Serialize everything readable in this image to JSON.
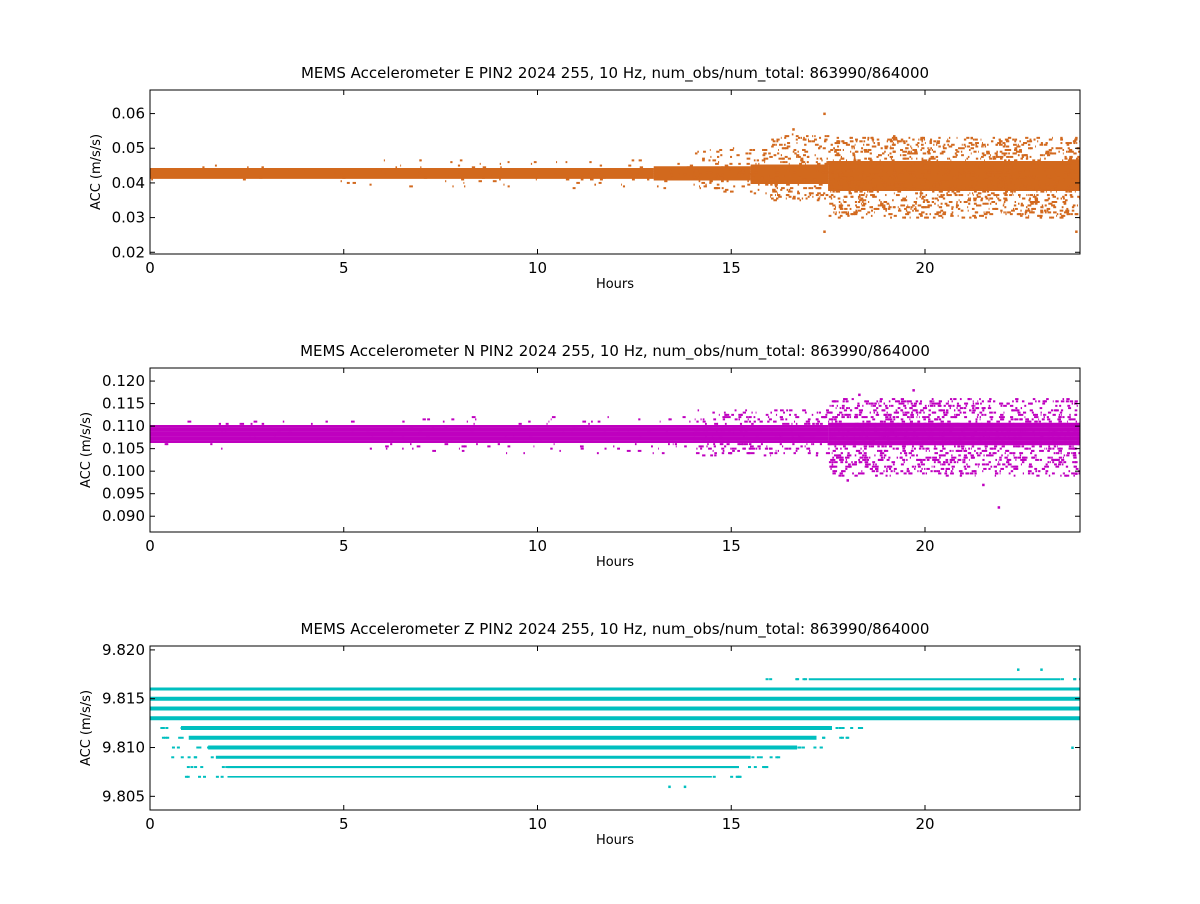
{
  "chart_data": [
    {
      "type": "scatter",
      "title": "MEMS Accelerometer E PIN2 2024 255, 10 Hz, num_obs/num_total: 863990/864000",
      "xlabel": "Hours",
      "ylabel": "ACC (m/s/s)",
      "color": "#d2691e",
      "xlim": [
        0,
        24
      ],
      "ylim": [
        0.0195,
        0.0668
      ],
      "xticks": [
        0,
        5,
        10,
        15,
        20
      ],
      "yticks": [
        0.02,
        0.03,
        0.04,
        0.05,
        0.06
      ],
      "ytick_labels": [
        "0.02",
        "0.03",
        "0.04",
        "0.05",
        "0.06"
      ],
      "grid": false,
      "band_quantum": 0.0005,
      "band_segments": [
        {
          "x0": 0.0,
          "x1": 13.0,
          "y0": 0.0415,
          "y1": 0.044
        },
        {
          "x0": 13.0,
          "x1": 15.5,
          "y0": 0.041,
          "y1": 0.0445
        },
        {
          "x0": 15.5,
          "x1": 17.5,
          "y0": 0.04,
          "y1": 0.045
        },
        {
          "x0": 17.5,
          "x1": 24.0,
          "y0": 0.038,
          "y1": 0.046
        }
      ],
      "outlier_envelope": [
        {
          "x0": 0.0,
          "x1": 6.0,
          "y0": 0.0395,
          "y1": 0.0455,
          "density": 0.4
        },
        {
          "x0": 6.0,
          "x1": 14.0,
          "y0": 0.0385,
          "y1": 0.0465,
          "density": 1.2
        },
        {
          "x0": 14.0,
          "x1": 16.0,
          "y0": 0.037,
          "y1": 0.05,
          "density": 6
        },
        {
          "x0": 16.0,
          "x1": 17.5,
          "y0": 0.035,
          "y1": 0.054,
          "density": 14
        },
        {
          "x0": 17.5,
          "x1": 24.0,
          "y0": 0.03,
          "y1": 0.053,
          "density": 22
        }
      ],
      "extreme_points": [
        {
          "x": 17.4,
          "y": 0.06
        },
        {
          "x": 17.4,
          "y": 0.026
        },
        {
          "x": 16.6,
          "y": 0.0555
        },
        {
          "x": 23.9,
          "y": 0.026
        },
        {
          "x": 19.2,
          "y": 0.0535
        },
        {
          "x": 21.2,
          "y": 0.053
        },
        {
          "x": 23.9,
          "y": 0.053
        }
      ]
    },
    {
      "type": "scatter",
      "title": "MEMS Accelerometer N PIN2 2024 255, 10 Hz, num_obs/num_total: 863990/864000",
      "xlabel": "Hours",
      "ylabel": "ACC (m/s/s)",
      "color": "#bf00bf",
      "xlim": [
        0,
        24
      ],
      "ylim": [
        0.0865,
        0.1229
      ],
      "xticks": [
        0,
        5,
        10,
        15,
        20
      ],
      "yticks": [
        0.09,
        0.095,
        0.1,
        0.105,
        0.11,
        0.115,
        0.12
      ],
      "ytick_labels": [
        "0.090",
        "0.095",
        "0.100",
        "0.105",
        "0.110",
        "0.115",
        "0.120"
      ],
      "grid": false,
      "band_quantum": 0.0005,
      "band_segments": [
        {
          "x0": 0.0,
          "x1": 17.5,
          "y0": 0.1065,
          "y1": 0.11
        },
        {
          "x0": 17.5,
          "x1": 24.0,
          "y0": 0.106,
          "y1": 0.1105
        }
      ],
      "outlier_envelope": [
        {
          "x0": 0.0,
          "x1": 6.0,
          "y0": 0.105,
          "y1": 0.1115,
          "density": 0.6
        },
        {
          "x0": 6.0,
          "x1": 14.0,
          "y0": 0.104,
          "y1": 0.112,
          "density": 1.5
        },
        {
          "x0": 14.0,
          "x1": 17.5,
          "y0": 0.1035,
          "y1": 0.1135,
          "density": 8
        },
        {
          "x0": 17.5,
          "x1": 24.0,
          "y0": 0.099,
          "y1": 0.116,
          "density": 22
        }
      ],
      "extreme_points": [
        {
          "x": 19.7,
          "y": 0.118
        },
        {
          "x": 21.9,
          "y": 0.092
        },
        {
          "x": 18.0,
          "y": 0.098
        },
        {
          "x": 21.5,
          "y": 0.097
        },
        {
          "x": 23.9,
          "y": 0.0995
        },
        {
          "x": 18.3,
          "y": 0.117
        }
      ]
    },
    {
      "type": "scatter",
      "title": "MEMS Accelerometer Z PIN2 2024 255, 10 Hz, num_obs/num_total: 863990/864000",
      "xlabel": "Hours",
      "ylabel": "ACC (m/s/s)",
      "color": "#00bfbf",
      "xlim": [
        0,
        24
      ],
      "ylim": [
        9.8036,
        9.8204
      ],
      "xticks": [
        0,
        5,
        10,
        15,
        20
      ],
      "yticks": [
        9.805,
        9.81,
        9.815,
        9.82
      ],
      "ytick_labels": [
        "9.805",
        "9.810",
        "9.815",
        "9.820"
      ],
      "grid": false,
      "levels": [
        {
          "y": 9.807,
          "start": 2.0,
          "end": 14.5,
          "weight": 1.6
        },
        {
          "y": 9.808,
          "start": 2.0,
          "end": 15.2,
          "weight": 2.2
        },
        {
          "y": 9.809,
          "start": 1.7,
          "end": 15.5,
          "weight": 3.0
        },
        {
          "y": 9.81,
          "start": 1.5,
          "end": 16.7,
          "weight": 4.0
        },
        {
          "y": 9.811,
          "start": 1.0,
          "end": 17.2,
          "weight": 4.0
        },
        {
          "y": 9.812,
          "start": 0.8,
          "end": 17.6,
          "weight": 4.0
        },
        {
          "y": 9.813,
          "start": 0.0,
          "end": 24.0,
          "weight": 4.0
        },
        {
          "y": 9.814,
          "start": 0.0,
          "end": 24.0,
          "weight": 4.0
        },
        {
          "y": 9.815,
          "start": 0.0,
          "end": 24.0,
          "weight": 4.0
        },
        {
          "y": 9.816,
          "start": 0.0,
          "end": 24.0,
          "weight": 3.0
        },
        {
          "y": 9.817,
          "start": 17.0,
          "end": 23.5,
          "weight": 2.0
        }
      ],
      "extreme_points": [
        {
          "x": 13.4,
          "y": 9.806
        },
        {
          "x": 13.8,
          "y": 9.806
        },
        {
          "x": 22.4,
          "y": 9.818
        },
        {
          "x": 23.0,
          "y": 9.818
        },
        {
          "x": 9.1,
          "y": 9.813
        },
        {
          "x": 23.8,
          "y": 9.81
        }
      ]
    }
  ]
}
